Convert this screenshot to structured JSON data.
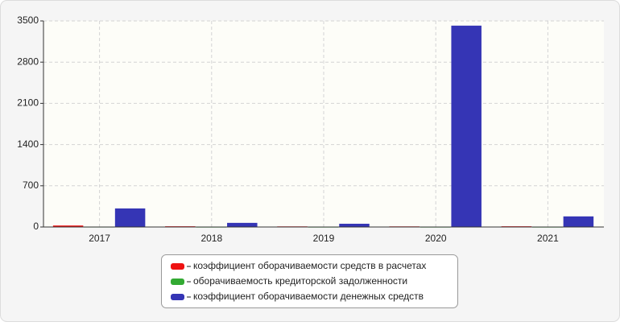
{
  "chart_data": {
    "type": "bar",
    "categories": [
      "2017",
      "2018",
      "2019",
      "2020",
      "2021"
    ],
    "series": [
      {
        "name": "коэффициент оборачиваемости средств в расчетах",
        "color": "#ee1111",
        "values": [
          25,
          12,
          10,
          10,
          12
        ]
      },
      {
        "name": "оборачиваемость кредиторской задолженности",
        "color": "#33aa33",
        "values": [
          6,
          5,
          5,
          5,
          5
        ]
      },
      {
        "name": "коэффициент оборачиваемости денежных средств",
        "color": "#3535b5",
        "values": [
          315,
          70,
          55,
          3420,
          180
        ]
      }
    ],
    "ylim": [
      0,
      3500
    ],
    "yticks": [
      0,
      700,
      1400,
      2100,
      2800,
      3500
    ],
    "grid": true,
    "legend": "bottom"
  }
}
